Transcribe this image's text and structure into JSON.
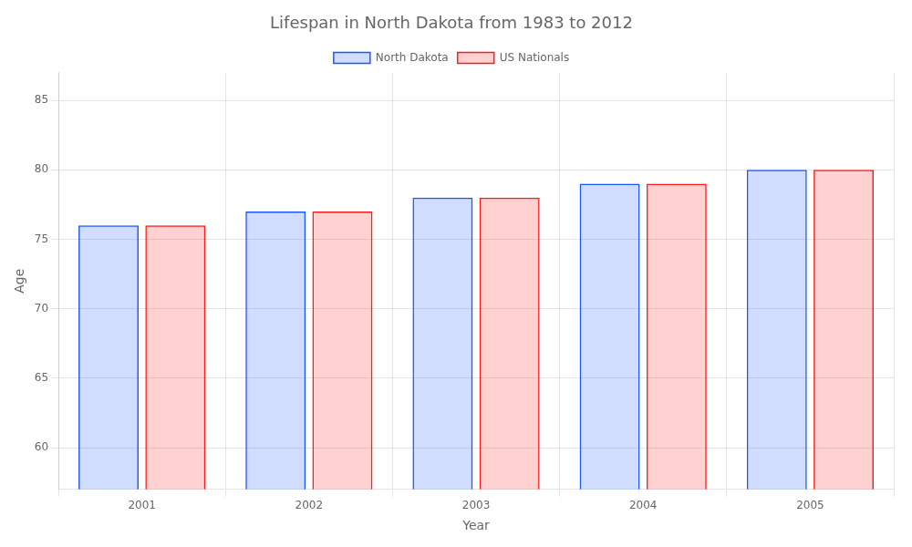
{
  "chart_data": {
    "type": "bar",
    "title": "Lifespan in North Dakota from 1983 to 2012",
    "xlabel": "Year",
    "ylabel": "Age",
    "categories": [
      "2001",
      "2002",
      "2003",
      "2004",
      "2005"
    ],
    "series": [
      {
        "name": "North Dakota",
        "color": "#1a56ff",
        "values": [
          76.0,
          77.0,
          78.0,
          79.0,
          80.0
        ]
      },
      {
        "name": "US Nationals",
        "color": "#ff1a1a",
        "values": [
          76.0,
          77.0,
          78.0,
          79.0,
          80.0
        ]
      }
    ],
    "ylim": [
      57,
      87
    ],
    "yticks": [
      60,
      65,
      70,
      75,
      80,
      85
    ],
    "grid": true,
    "legend": "top"
  }
}
